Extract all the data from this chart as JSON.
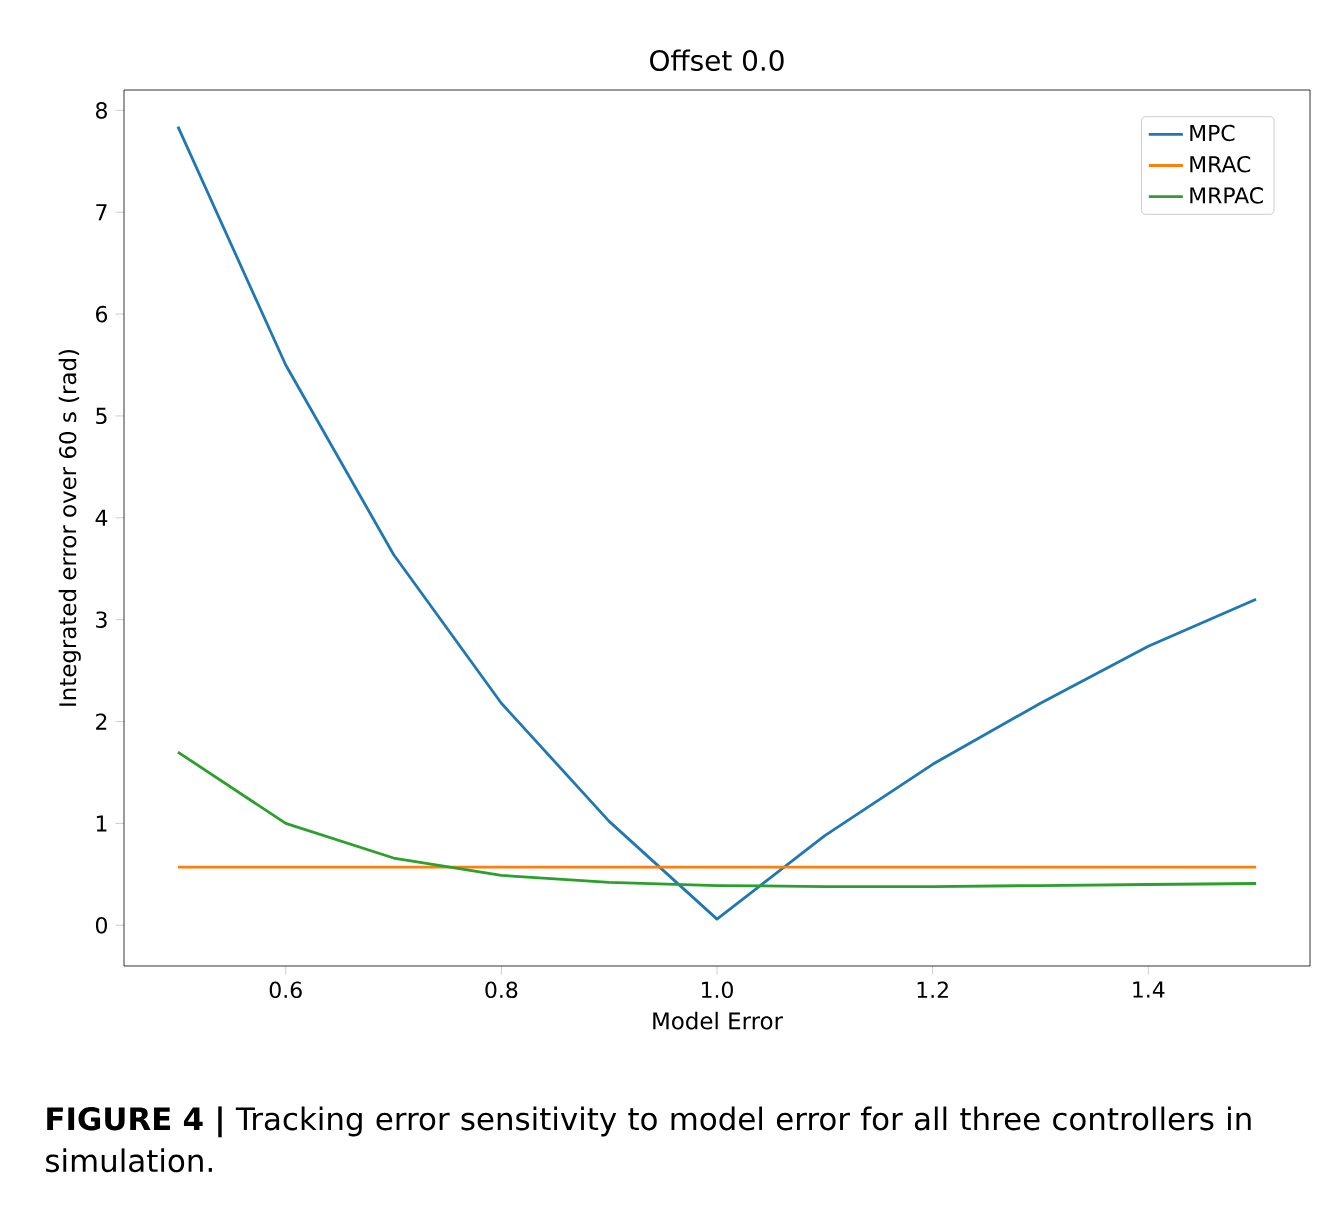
{
  "chart_data": {
    "type": "line",
    "title": "Offset 0.0",
    "xlabel": "Model Error",
    "ylabel": "Integrated error over 60 s (rad)",
    "x": [
      0.5,
      0.6,
      0.7,
      0.8,
      0.9,
      1.0,
      1.1,
      1.2,
      1.3,
      1.4,
      1.5
    ],
    "series": [
      {
        "name": "MPC",
        "color": "#1f77b4",
        "values": [
          7.84,
          5.5,
          3.64,
          2.18,
          1.02,
          0.06,
          0.88,
          1.58,
          2.18,
          2.74,
          3.2
        ]
      },
      {
        "name": "MRAC",
        "color": "#ff7f0e",
        "values": [
          0.57,
          0.57,
          0.57,
          0.57,
          0.57,
          0.57,
          0.57,
          0.57,
          0.57,
          0.57,
          0.57
        ]
      },
      {
        "name": "MRPAC",
        "color": "#2ca02c",
        "values": [
          1.7,
          1.0,
          0.66,
          0.49,
          0.42,
          0.39,
          0.38,
          0.38,
          0.39,
          0.4,
          0.41
        ]
      }
    ],
    "xlim": [
      0.45,
      1.55
    ],
    "ylim": [
      -0.4,
      8.2
    ],
    "xticks": [
      0.6,
      0.8,
      {
        "value": 1.0,
        "label": "1.0"
      },
      1.2,
      1.4
    ],
    "yticks": [
      0,
      1,
      2,
      3,
      4,
      5,
      6,
      7,
      8
    ],
    "grid": false,
    "legend": "top right",
    "annotations": [
      "**FIGURE 4 |** Tracking error sensitivity to model error for all three controllers in simulation."
    ]
  }
}
